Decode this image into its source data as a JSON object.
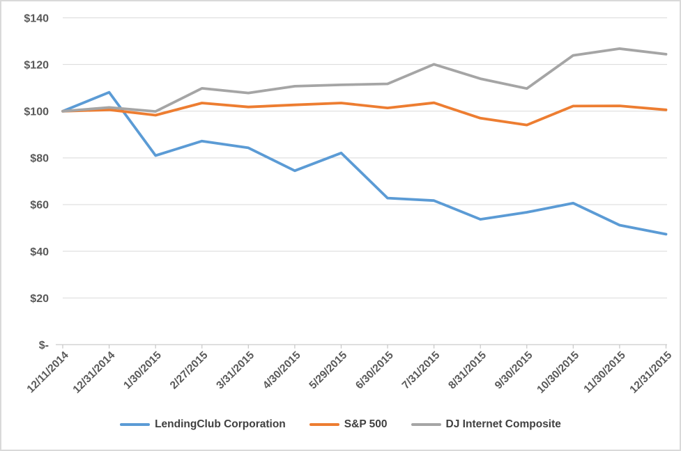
{
  "chart_data": {
    "type": "line",
    "title": "",
    "xlabel": "",
    "ylabel": "",
    "categories": [
      "12/11/2014",
      "12/31/2014",
      "1/30/2015",
      "2/27/2015",
      "3/31/2015",
      "4/30/2015",
      "5/29/2015",
      "6/30/2015",
      "7/31/2015",
      "8/31/2015",
      "9/30/2015",
      "10/30/2015",
      "11/30/2015",
      "12/31/2015"
    ],
    "series": [
      {
        "name": "LendingClub Corporation",
        "color": "#5B9BD5",
        "values": [
          100,
          108.1,
          81.0,
          87.2,
          84.3,
          74.5,
          82.1,
          62.8,
          61.7,
          53.7,
          56.7,
          60.6,
          51.2,
          47.3
        ]
      },
      {
        "name": "S&P 500",
        "color": "#ED7D31",
        "values": [
          100,
          100.6,
          98.3,
          103.5,
          101.8,
          102.7,
          103.5,
          101.4,
          103.6,
          97.0,
          94.1,
          102.2,
          102.3,
          100.6
        ]
      },
      {
        "name": "DJ Internet Composite",
        "color": "#A5A5A5",
        "values": [
          100,
          101.6,
          99.9,
          109.8,
          107.8,
          110.7,
          111.3,
          111.7,
          120.1,
          113.9,
          109.7,
          123.9,
          126.8,
          124.4
        ]
      }
    ],
    "y_axis": {
      "range": [
        0,
        140
      ],
      "ticks": [
        {
          "label": "$140",
          "value": 140
        },
        {
          "label": "$120",
          "value": 120
        },
        {
          "label": "$100",
          "value": 100
        },
        {
          "label": "$80",
          "value": 80
        },
        {
          "label": "$60",
          "value": 60
        },
        {
          "label": "$40",
          "value": 40
        },
        {
          "label": "$20",
          "value": 20
        },
        {
          "label": "$-",
          "value": 0
        }
      ]
    },
    "grid": true,
    "legend_position": "bottom",
    "colors": {
      "gridline": "#D9D9D9",
      "axis_line": "#C6C6C6",
      "axis_text": "#595959",
      "legend_text": "#404040",
      "border": "#D9D9D9",
      "background": "#FFFFFF"
    }
  }
}
